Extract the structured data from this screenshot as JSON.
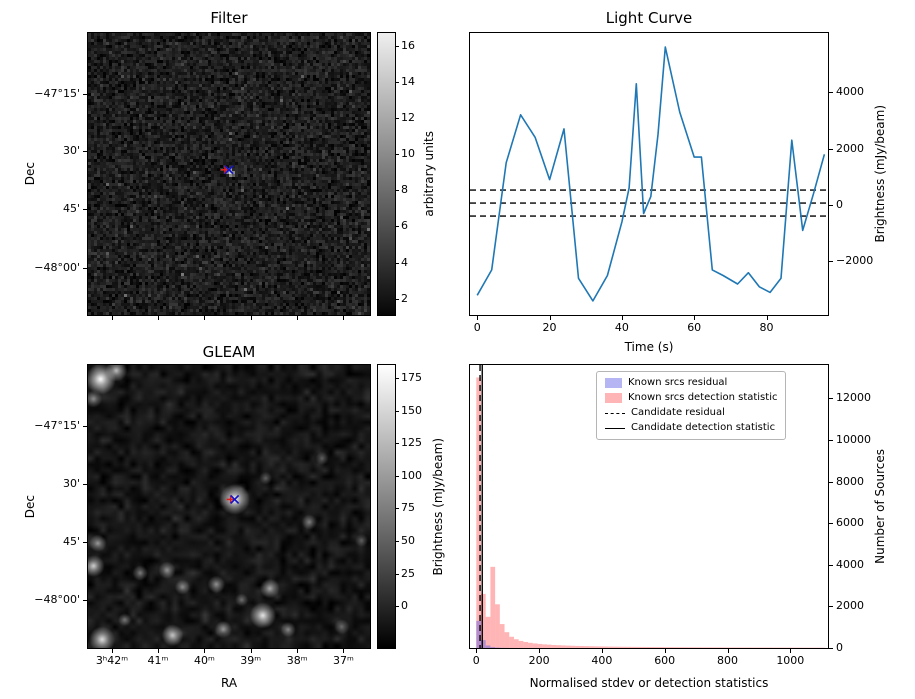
{
  "colors": {
    "line_blue": "#1f77b4",
    "marker_cross": "#1515c8",
    "marker_plus": "#e02020",
    "hist_blue": "rgba(90,90,230,0.45)",
    "hist_pink": "rgba(255,90,90,0.45)",
    "axis_black": "#000000"
  },
  "chart_data": [
    {
      "type": "heatmap",
      "title": "Filter",
      "ylabel": "Dec",
      "yticks": {
        "labels": [
          "−47°15'",
          "30'",
          "45'",
          "−48°00'"
        ],
        "fracs": [
          0.215,
          0.42,
          0.625,
          0.832
        ]
      },
      "colorbar": {
        "label": "arbitrary units",
        "tick_values": [
          16,
          14,
          12,
          10,
          8,
          6,
          4,
          2
        ],
        "vmin": 1.1,
        "vmax": 16.7
      },
      "marker": {
        "x": 0.5,
        "y": 0.485
      }
    },
    {
      "type": "line",
      "title": "Light Curve",
      "xlabel": "Time (s)",
      "ylabel": "Brightness (mJy/beam)",
      "color": "#1f77b4",
      "xlim": [
        -2,
        97
      ],
      "ylim": [
        -3900,
        6100
      ],
      "xticks": [
        0,
        20,
        40,
        60,
        80
      ],
      "yticks": [
        4000,
        2000,
        0,
        -2000
      ],
      "ytick_labels": [
        "4000",
        "2000",
        "0",
        "−2000"
      ],
      "x": [
        0,
        4,
        8,
        12,
        16,
        20,
        24,
        28,
        32,
        36,
        40,
        42,
        44,
        46,
        48,
        50,
        52,
        56,
        60,
        62,
        65,
        68,
        72,
        75,
        78,
        81,
        84,
        87,
        90,
        93,
        96
      ],
      "y": [
        -3200,
        -2300,
        1500,
        3200,
        2400,
        900,
        2700,
        -2600,
        -3400,
        -2500,
        -600,
        600,
        4300,
        -300,
        300,
        2500,
        5600,
        3300,
        1700,
        1700,
        -2300,
        -2500,
        -2800,
        -2400,
        -2900,
        -3100,
        -2600,
        2300,
        -900,
        400,
        1800
      ],
      "dashed_hlines": [
        530,
        70,
        -390
      ]
    },
    {
      "type": "heatmap",
      "title": "GLEAM",
      "xlabel": "RA",
      "ylabel": "Dec",
      "xticks": {
        "labels": [
          "3ʰ42ᵐ",
          "41ᵐ",
          "40ᵐ",
          "39ᵐ",
          "38ᵐ",
          "37ᵐ"
        ],
        "fracs": [
          0.085,
          0.248,
          0.413,
          0.577,
          0.742,
          0.906
        ]
      },
      "yticks": {
        "labels": [
          "−47°15'",
          "30'",
          "45'",
          "−48°00'"
        ],
        "fracs": [
          0.215,
          0.42,
          0.625,
          0.832
        ]
      },
      "colorbar": {
        "label": "Brightness (mJy/beam)",
        "tick_values": [
          175,
          150,
          125,
          100,
          75,
          50,
          25,
          0
        ],
        "vmin": -32,
        "vmax": 185
      },
      "marker": {
        "x": 0.52,
        "y": 0.475
      },
      "blobs": [
        [
          0.045,
          0.05,
          7,
          1.0
        ],
        [
          0.1,
          0.02,
          5,
          0.75
        ],
        [
          0.02,
          0.12,
          4,
          0.5
        ],
        [
          0.52,
          0.475,
          7,
          1.0
        ],
        [
          0.63,
          0.4,
          3,
          0.35
        ],
        [
          0.035,
          0.63,
          4,
          0.6
        ],
        [
          0.02,
          0.71,
          5,
          0.8
        ],
        [
          0.05,
          0.97,
          6,
          0.85
        ],
        [
          0.13,
          0.9,
          3,
          0.4
        ],
        [
          0.185,
          0.735,
          3.5,
          0.5
        ],
        [
          0.28,
          0.725,
          4,
          0.55
        ],
        [
          0.335,
          0.785,
          3.5,
          0.5
        ],
        [
          0.3,
          0.955,
          5,
          0.75
        ],
        [
          0.455,
          0.775,
          4,
          0.55
        ],
        [
          0.48,
          0.935,
          4,
          0.55
        ],
        [
          0.545,
          0.83,
          3,
          0.4
        ],
        [
          0.62,
          0.885,
          6,
          0.9
        ],
        [
          0.645,
          0.79,
          4.5,
          0.65
        ],
        [
          0.71,
          0.935,
          3.5,
          0.5
        ],
        [
          0.785,
          0.555,
          3.5,
          0.45
        ],
        [
          0.83,
          0.33,
          3,
          0.35
        ],
        [
          0.9,
          0.925,
          3.5,
          0.4
        ],
        [
          0.97,
          0.62,
          3,
          0.3
        ]
      ]
    },
    {
      "type": "bar",
      "xlabel": "Normalised stdev or detection statistics",
      "ylabel": "Number of Sources",
      "xlim": [
        -20,
        1120
      ],
      "ylim": [
        0,
        13600
      ],
      "xticks": [
        0,
        200,
        400,
        600,
        800,
        1000
      ],
      "yticks": [
        0,
        2000,
        4000,
        6000,
        8000,
        10000,
        12000
      ],
      "bin_width": 15,
      "series": [
        {
          "name": "Known srcs residual",
          "color": "rgba(90,90,230,0.45)",
          "counts": [
            1300,
            380,
            120,
            45,
            20,
            10,
            6,
            3,
            2,
            1
          ]
        },
        {
          "name": "Known srcs detection statistic",
          "color": "rgba(255,90,90,0.45)",
          "counts": [
            13000,
            2600,
            1500,
            3900,
            2100,
            1150,
            760,
            540,
            420,
            340,
            290,
            250,
            220,
            195,
            175,
            160,
            145,
            135,
            125,
            115,
            108,
            100,
            95,
            90,
            85,
            80,
            76,
            72,
            68,
            65,
            62,
            59,
            56,
            54,
            52,
            50,
            48,
            46,
            44,
            43,
            41,
            40,
            38,
            37,
            36,
            35,
            34,
            33,
            32,
            31,
            30,
            29,
            28,
            27,
            27,
            26,
            25,
            25,
            24,
            23,
            23,
            22,
            22,
            21,
            21,
            20,
            20,
            19,
            19,
            18,
            18,
            17,
            17,
            16
          ]
        }
      ],
      "candidate_residual": {
        "x": 12,
        "style": "dashed"
      },
      "candidate_detection_statistic": {
        "x": 19,
        "style": "solid"
      },
      "legend": [
        "Known srcs residual",
        "Known srcs detection statistic",
        "Candidate residual",
        "Candidate detection statistic"
      ]
    }
  ]
}
